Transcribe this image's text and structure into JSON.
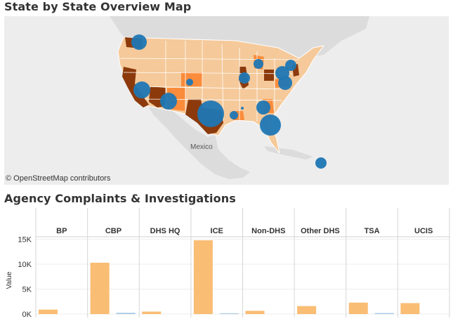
{
  "dashboard": {
    "map_title": "State by State Overview Map",
    "chart_title": "Agency Complaints & Investigations"
  },
  "map": {
    "attribution": "© OpenStreetMap contributors",
    "country_label": "Mexico",
    "colors": {
      "water": "#ededed",
      "land_other": "#dcdcdc",
      "state_light": "#f5c99a",
      "state_mid": "#fb8c3b",
      "state_dark": "#8c3a0c",
      "bubble": "#1f77b4"
    }
  },
  "chart_data": {
    "type": "bar",
    "categories": [
      "BP",
      "CBP",
      "DHS HQ",
      "ICE",
      "Non-DHS",
      "Other DHS",
      "TSA",
      "UCIS"
    ],
    "series": [
      {
        "values": [
          900,
          10300,
          500,
          14800,
          650,
          1600,
          2300,
          2200
        ],
        "color": "#f9bd74"
      },
      {
        "values": [
          0,
          250,
          0,
          150,
          0,
          0,
          200,
          0
        ],
        "color": "#a6c8e6"
      }
    ],
    "ylabel": "Value",
    "yticks": [
      0,
      5000,
      10000,
      15000
    ],
    "ytick_labels": [
      "0K",
      "5K",
      "10K",
      "15K"
    ],
    "ylim": [
      -700,
      15500
    ]
  }
}
